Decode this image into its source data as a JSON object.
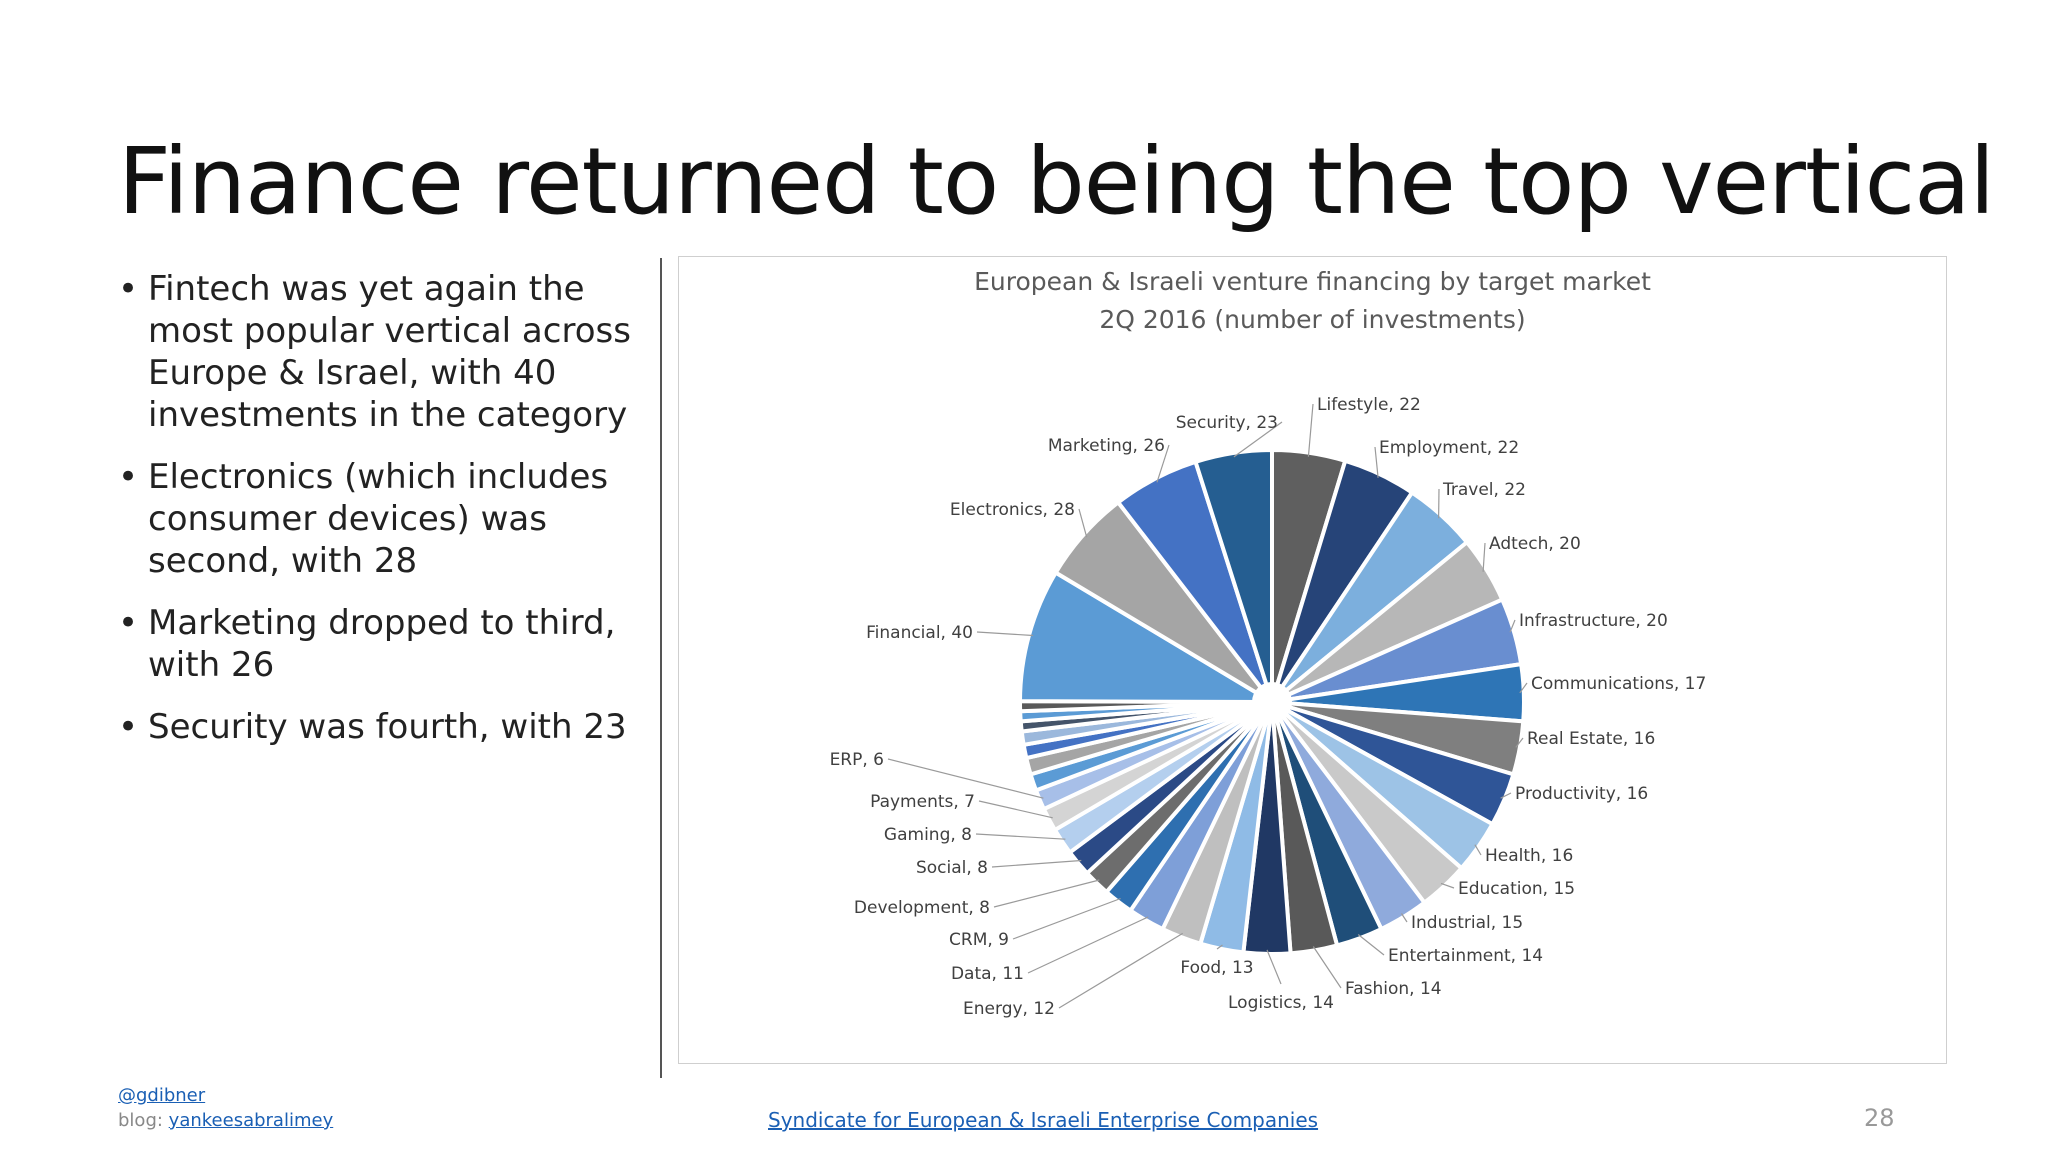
{
  "slide": {
    "title": "Finance returned to being the top vertical",
    "bullets": [
      "Fintech was yet again the most popular vertical across Europe & Israel, with 40 investments in the category",
      "Electronics (which includes consumer devices) was second, with 28",
      "Marketing dropped to third, with 26",
      "Security was fourth, with 23"
    ]
  },
  "footer": {
    "handle": "@gdibner",
    "blog_prefix": "blog:",
    "blog_link": "yankeesabralimey",
    "source_link": "Syndicate for European & Israeli Enterprise Companies",
    "page_number": "28"
  },
  "chart_data": {
    "type": "pie",
    "title_line1": "European & Israeli venture financing by target market",
    "title_line2": "2Q 2016 (number of investments)",
    "start_from": "12 o'clock, clockwise",
    "slices": [
      {
        "label": "Lifestyle, 22",
        "name": "Lifestyle",
        "value": 22,
        "color": "#5f5f5f"
      },
      {
        "label": "Employment,  22",
        "name": "Employment",
        "value": 22,
        "color": "#264478"
      },
      {
        "label": "Travel, 22",
        "name": "Travel",
        "value": 22,
        "color": "#7cafdd"
      },
      {
        "label": "Adtech,  20",
        "name": "Adtech",
        "value": 20,
        "color": "#b7b7b7"
      },
      {
        "label": "Infrastructure, 20",
        "name": "Infrastructure",
        "value": 20,
        "color": "#698ed0"
      },
      {
        "label": "Communications, 17",
        "name": "Communications",
        "value": 17,
        "color": "#2e75b6"
      },
      {
        "label": "Real Estate,  16",
        "name": "Real Estate",
        "value": 16,
        "color": "#7f7f7f"
      },
      {
        "label": "Productivity, 16",
        "name": "Productivity",
        "value": 16,
        "color": "#2f5597"
      },
      {
        "label": "Health, 16",
        "name": "Health",
        "value": 16,
        "color": "#9dc3e6"
      },
      {
        "label": "Education, 15",
        "name": "Education",
        "value": 15,
        "color": "#c9c9c9"
      },
      {
        "label": "Industrial, 15",
        "name": "Industrial",
        "value": 15,
        "color": "#8faadc"
      },
      {
        "label": "Entertainment,  14",
        "name": "Entertainment",
        "value": 14,
        "color": "#1f4e79"
      },
      {
        "label": "Fashion, 14",
        "name": "Fashion",
        "value": 14,
        "color": "#595959"
      },
      {
        "label": "Logistics, 14",
        "name": "Logistics",
        "value": 14,
        "color": "#203864"
      },
      {
        "label": "Food,  13",
        "name": "Food",
        "value": 13,
        "color": "#8fbbe6"
      },
      {
        "label": "Energy,  12",
        "name": "Energy",
        "value": 12,
        "color": "#bfbfbf"
      },
      {
        "label": "Data, 11",
        "name": "Data",
        "value": 11,
        "color": "#7e9fd8"
      },
      {
        "label": "CRM,  9",
        "name": "CRM",
        "value": 9,
        "color": "#2e6fb0"
      },
      {
        "label": "Development,  8",
        "name": "Development",
        "value": 8,
        "color": "#6d6d6d"
      },
      {
        "label": "Social, 8",
        "name": "Social",
        "value": 8,
        "color": "#2b4a86"
      },
      {
        "label": "Gaming, 8",
        "name": "Gaming",
        "value": 8,
        "color": "#b4cfee"
      },
      {
        "label": "Payments,  7",
        "name": "Payments",
        "value": 7,
        "color": "#d4d4d4"
      },
      {
        "label": "ERP,  6",
        "name": "ERP",
        "value": 6,
        "color": "#a7bfe8"
      },
      {
        "label": "",
        "name": "",
        "value": 5,
        "color": "#5b9bd5"
      },
      {
        "label": "",
        "name": "",
        "value": 5,
        "color": "#a5a5a5"
      },
      {
        "label": "",
        "name": "",
        "value": 4,
        "color": "#4472c4"
      },
      {
        "label": "",
        "name": "",
        "value": 4,
        "color": "#9bb8dc"
      },
      {
        "label": "",
        "name": "",
        "value": 3,
        "color": "#44546a"
      },
      {
        "label": "",
        "name": "",
        "value": 3,
        "color": "#5b9bd5"
      },
      {
        "label": "",
        "name": "",
        "value": 3,
        "color": "#595959"
      },
      {
        "label": "Financial, 40",
        "name": "Financial",
        "value": 40,
        "color": "#5b9bd5"
      },
      {
        "label": "Electronics, 28",
        "name": "Electronics",
        "value": 28,
        "color": "#a5a5a5"
      },
      {
        "label": "Marketing, 26",
        "name": "Marketing",
        "value": 26,
        "color": "#4472c4"
      },
      {
        "label": "Security, 23",
        "name": "Security",
        "value": 23,
        "color": "#255e91"
      }
    ]
  }
}
